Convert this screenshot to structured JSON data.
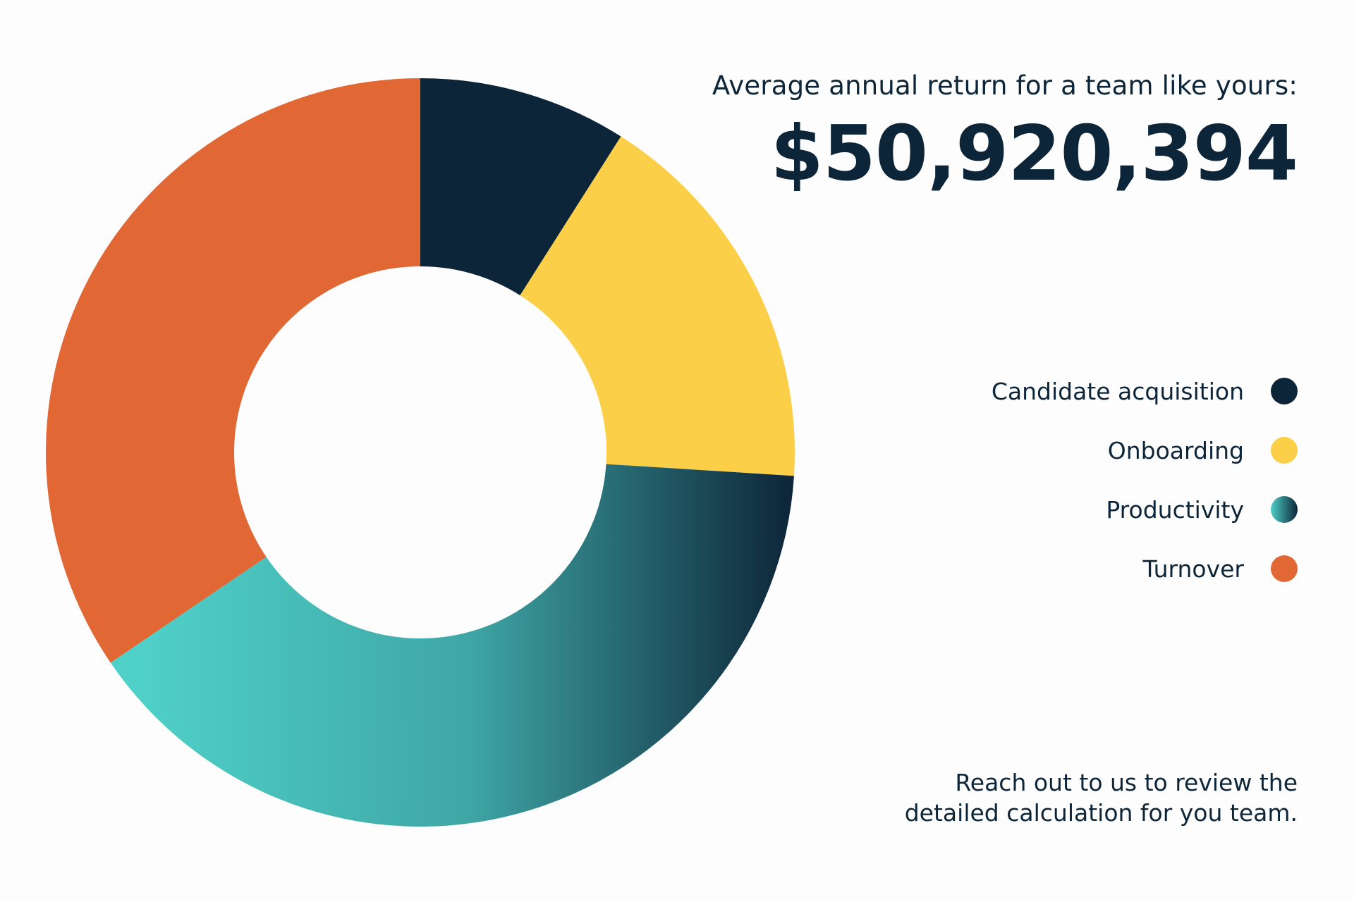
{
  "headline": "Average annual return for a team like yours:",
  "total": "$50,920,394",
  "footnote_line1": "Reach out to us to review the",
  "footnote_line2": "detailed calculation for you team.",
  "colors": {
    "navy": "#0d2538",
    "yellow": "#fbcf47",
    "teal_start": "#4fd0c8",
    "teal_end": "#0d2538",
    "orange": "#e16735"
  },
  "chart_data": {
    "type": "pie",
    "variant": "donut",
    "categories": [
      "Candidate acquisition",
      "Onboarding",
      "Productivity",
      "Turnover"
    ],
    "values": [
      9,
      17,
      39.5,
      34.5
    ],
    "value_unit": "percent (estimated share of total)",
    "legend_position": "right"
  }
}
